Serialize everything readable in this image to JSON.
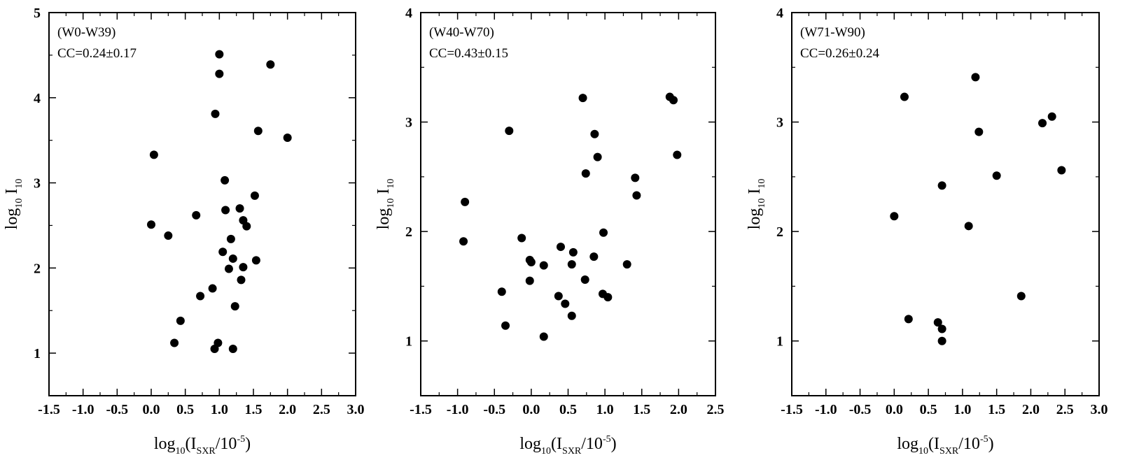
{
  "chart_data": [
    {
      "type": "scatter",
      "annotation_lines": [
        "(W0-W39)",
        "CC=0.24±0.17"
      ],
      "xlabel": {
        "base": "log",
        "base_sub": "10",
        "open": "(I",
        "sub": "SXR",
        "mid": "/10",
        "sup": "-5",
        "close": ")"
      },
      "ylabel": {
        "base": "log",
        "base_sub": "10",
        "var": " I",
        "var_sub": "10"
      },
      "xlim": [
        -1.5,
        3.0
      ],
      "ylim": [
        0.5,
        5.0
      ],
      "xticks": [
        "-1.5",
        "-1.0",
        "-0.5",
        "0.0",
        "0.5",
        "1.0",
        "1.5",
        "2.0",
        "2.5",
        "3.0"
      ],
      "yticks": [
        "1",
        "2",
        "3",
        "4",
        "5"
      ],
      "grid": false,
      "points": [
        [
          0.0,
          2.51
        ],
        [
          0.04,
          3.33
        ],
        [
          0.25,
          2.38
        ],
        [
          0.34,
          1.12
        ],
        [
          0.43,
          1.38
        ],
        [
          0.66,
          2.62
        ],
        [
          0.72,
          1.67
        ],
        [
          0.9,
          1.76
        ],
        [
          0.93,
          1.05
        ],
        [
          0.94,
          3.81
        ],
        [
          0.98,
          1.12
        ],
        [
          1.0,
          4.51
        ],
        [
          1.0,
          4.28
        ],
        [
          1.05,
          2.19
        ],
        [
          1.08,
          3.03
        ],
        [
          1.09,
          2.68
        ],
        [
          1.14,
          1.99
        ],
        [
          1.17,
          2.34
        ],
        [
          1.2,
          2.11
        ],
        [
          1.2,
          1.05
        ],
        [
          1.23,
          1.55
        ],
        [
          1.3,
          2.7
        ],
        [
          1.32,
          1.86
        ],
        [
          1.35,
          2.56
        ],
        [
          1.35,
          2.01
        ],
        [
          1.4,
          2.49
        ],
        [
          1.52,
          2.85
        ],
        [
          1.54,
          2.09
        ],
        [
          1.57,
          3.61
        ],
        [
          1.75,
          4.39
        ],
        [
          2.0,
          3.53
        ]
      ]
    },
    {
      "type": "scatter",
      "annotation_lines": [
        "(W40-W70)",
        "CC=0.43±0.15"
      ],
      "xlabel": {
        "base": "log",
        "base_sub": "10",
        "open": "(I",
        "sub": "SXR",
        "mid": "/10",
        "sup": "-5",
        "close": ")"
      },
      "ylabel": {
        "base": "log",
        "base_sub": "10",
        "var": " I",
        "var_sub": "10"
      },
      "xlim": [
        -1.5,
        2.5
      ],
      "ylim": [
        0.5,
        4.0
      ],
      "xticks": [
        "-1.5",
        "-1.0",
        "-0.5",
        "0.0",
        "0.5",
        "1.0",
        "1.5",
        "2.0",
        "2.5"
      ],
      "yticks": [
        "1",
        "2",
        "3",
        "4"
      ],
      "grid": false,
      "points": [
        [
          -0.92,
          1.91
        ],
        [
          -0.9,
          2.27
        ],
        [
          -0.4,
          1.45
        ],
        [
          -0.35,
          1.14
        ],
        [
          -0.3,
          2.92
        ],
        [
          -0.13,
          1.94
        ],
        [
          -0.02,
          1.55
        ],
        [
          -0.02,
          1.74
        ],
        [
          0.0,
          1.72
        ],
        [
          0.17,
          1.69
        ],
        [
          0.17,
          1.04
        ],
        [
          0.37,
          1.41
        ],
        [
          0.4,
          1.86
        ],
        [
          0.46,
          1.34
        ],
        [
          0.55,
          1.7
        ],
        [
          0.55,
          1.23
        ],
        [
          0.57,
          1.81
        ],
        [
          0.7,
          3.22
        ],
        [
          0.73,
          1.56
        ],
        [
          0.74,
          2.53
        ],
        [
          0.85,
          1.77
        ],
        [
          0.86,
          2.89
        ],
        [
          0.9,
          2.68
        ],
        [
          0.97,
          1.43
        ],
        [
          0.98,
          1.99
        ],
        [
          1.04,
          1.4
        ],
        [
          1.3,
          1.7
        ],
        [
          1.41,
          2.49
        ],
        [
          1.43,
          2.33
        ],
        [
          1.88,
          3.23
        ],
        [
          1.93,
          3.2
        ],
        [
          1.98,
          2.7
        ]
      ]
    },
    {
      "type": "scatter",
      "annotation_lines": [
        "(W71-W90)",
        "CC=0.26±0.24"
      ],
      "xlabel": {
        "base": "log",
        "base_sub": "10",
        "open": "(I",
        "sub": "SXR",
        "mid": "/10",
        "sup": "-5",
        "close": ")"
      },
      "ylabel": {
        "base": "log",
        "base_sub": "10",
        "var": " I",
        "var_sub": "10"
      },
      "xlim": [
        -1.5,
        3.0
      ],
      "ylim": [
        0.5,
        4.0
      ],
      "xticks": [
        "-1.5",
        "-1.0",
        "-0.5",
        "0.0",
        "0.5",
        "1.0",
        "1.5",
        "2.0",
        "2.5",
        "3.0"
      ],
      "yticks": [
        "1",
        "2",
        "3",
        "4"
      ],
      "grid": false,
      "points": [
        [
          0.0,
          2.14
        ],
        [
          0.15,
          3.23
        ],
        [
          0.21,
          1.2
        ],
        [
          0.64,
          1.17
        ],
        [
          0.7,
          1.11
        ],
        [
          0.7,
          1.0
        ],
        [
          0.7,
          2.42
        ],
        [
          1.09,
          2.05
        ],
        [
          1.19,
          3.41
        ],
        [
          1.24,
          2.91
        ],
        [
          1.5,
          2.51
        ],
        [
          1.86,
          1.41
        ],
        [
          2.17,
          2.99
        ],
        [
          2.31,
          3.05
        ],
        [
          2.45,
          2.56
        ]
      ]
    }
  ]
}
